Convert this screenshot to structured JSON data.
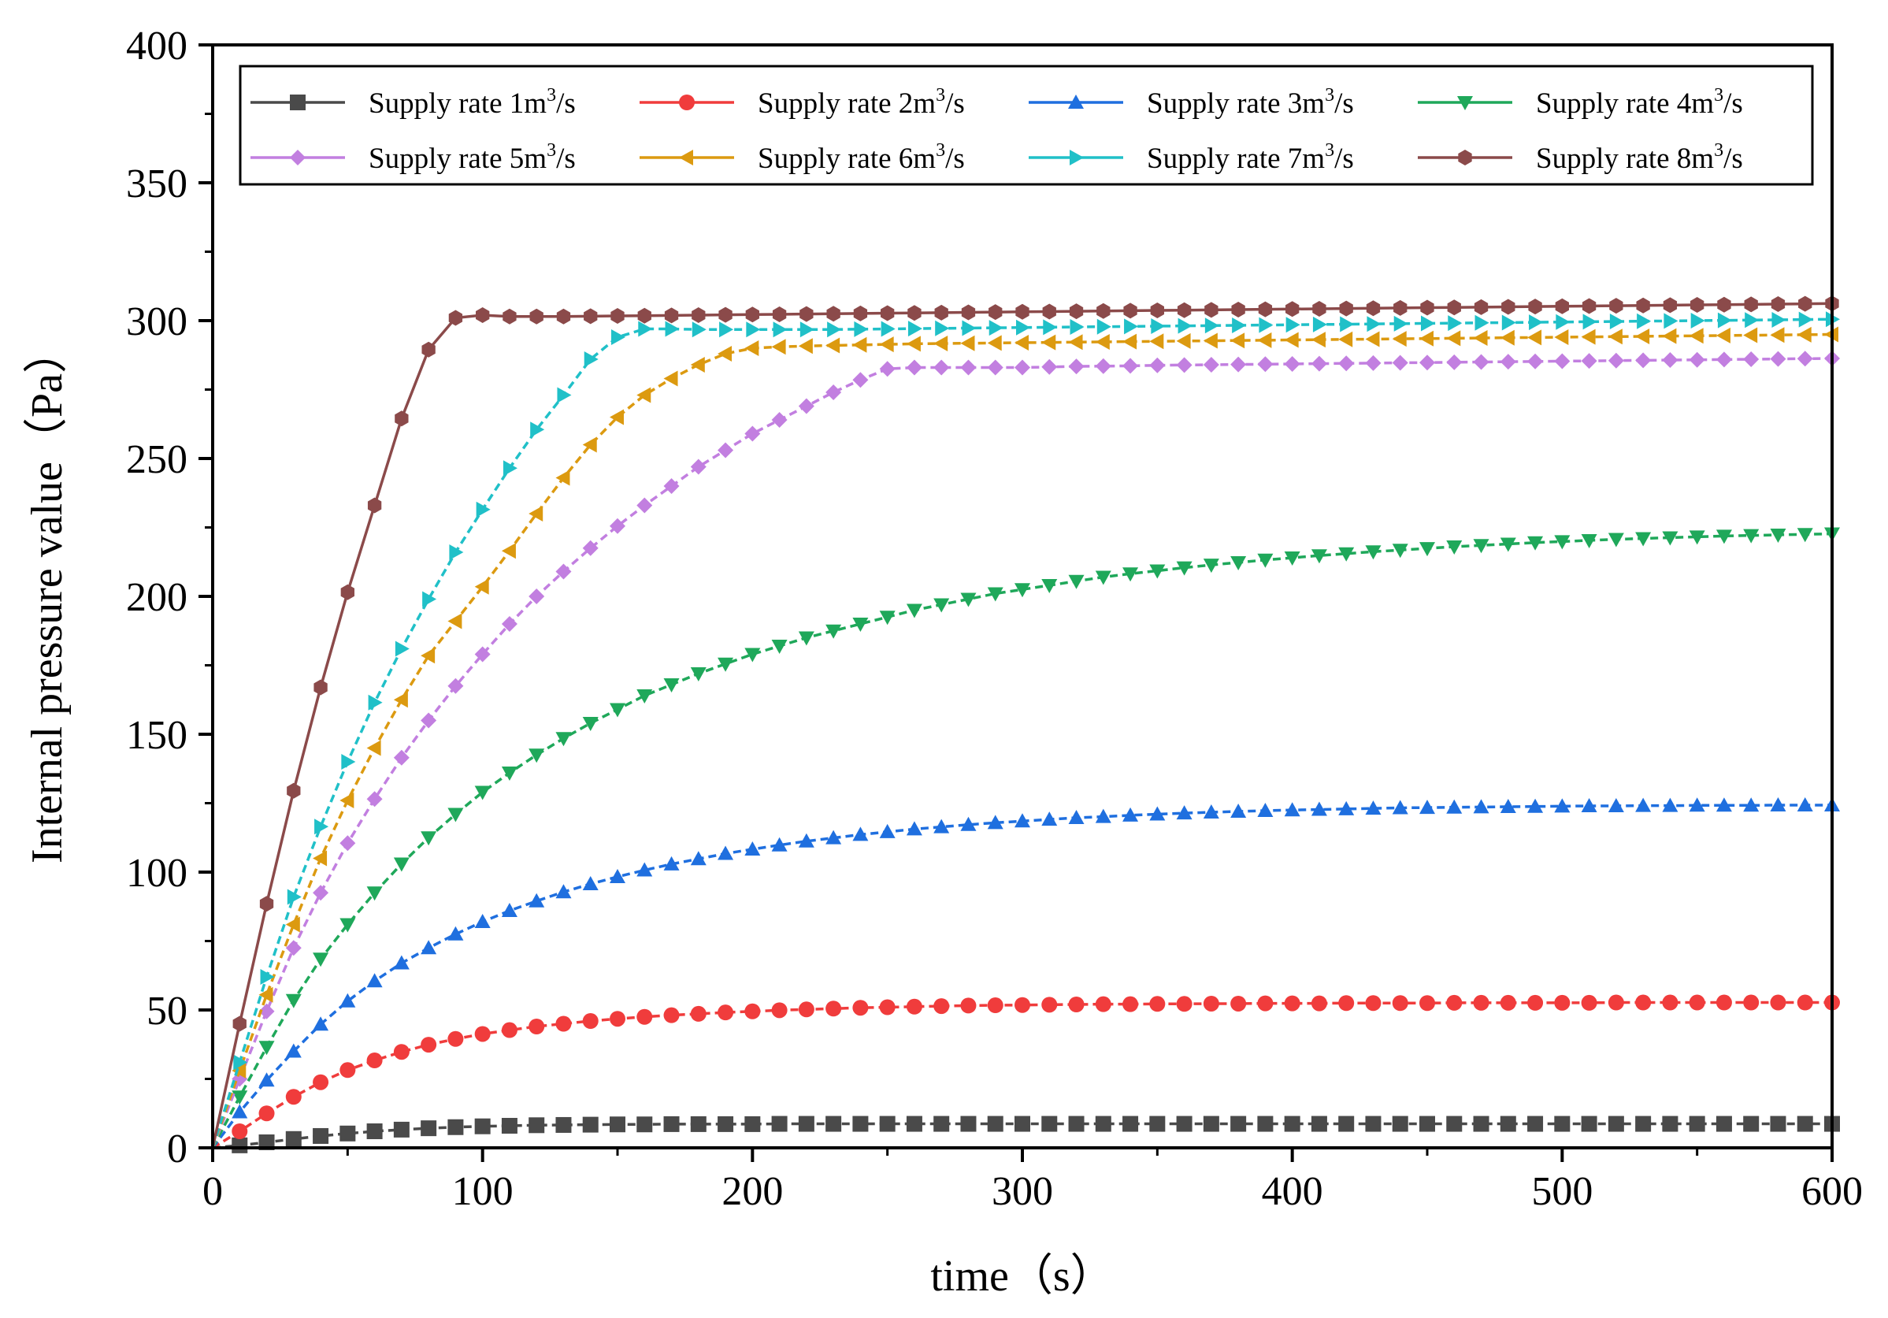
{
  "chart_data": {
    "type": "line",
    "title": "",
    "xlabel": "time（s）",
    "ylabel": "Internal pressure value（Pa）",
    "xlim": [
      0,
      600
    ],
    "ylim": [
      0,
      400
    ],
    "xticks": [
      0,
      100,
      200,
      300,
      400,
      500,
      600
    ],
    "yticks": [
      0,
      50,
      100,
      150,
      200,
      250,
      300,
      350,
      400
    ],
    "grid": false,
    "legend_position": "top",
    "legend_columns": 4,
    "x": [
      0,
      10,
      20,
      30,
      40,
      50,
      60,
      70,
      80,
      90,
      100,
      110,
      120,
      130,
      140,
      150,
      160,
      170,
      180,
      190,
      200,
      210,
      220,
      230,
      240,
      250,
      260,
      270,
      280,
      290,
      300,
      310,
      320,
      330,
      340,
      350,
      360,
      370,
      380,
      390,
      400,
      410,
      420,
      430,
      440,
      450,
      460,
      470,
      480,
      490,
      500,
      510,
      520,
      530,
      540,
      550,
      560,
      570,
      580,
      590,
      600
    ],
    "series": [
      {
        "name": "Supply rate 1m³/s",
        "name_base": "Supply rate 1m",
        "name_sup": "3",
        "name_tail": "/s",
        "color": "#4a4a4a",
        "marker": "square",
        "values": [
          0,
          0.9,
          2,
          3.2,
          4.3,
          5.2,
          6,
          6.6,
          7.1,
          7.5,
          7.8,
          8,
          8.2,
          8.3,
          8.4,
          8.5,
          8.5,
          8.6,
          8.6,
          8.6,
          8.6,
          8.7,
          8.7,
          8.7,
          8.7,
          8.7,
          8.7,
          8.7,
          8.7,
          8.7,
          8.7,
          8.7,
          8.7,
          8.7,
          8.7,
          8.7,
          8.7,
          8.7,
          8.7,
          8.7,
          8.7,
          8.7,
          8.7,
          8.7,
          8.7,
          8.7,
          8.7,
          8.7,
          8.7,
          8.7,
          8.7,
          8.7,
          8.7,
          8.7,
          8.7,
          8.7,
          8.7,
          8.7,
          8.7,
          8.7,
          8.7
        ]
      },
      {
        "name": "Supply rate 2m³/s",
        "name_base": "Supply rate 2m",
        "name_sup": "3",
        "name_tail": "/s",
        "color": "#f03c3c",
        "marker": "circle",
        "values": [
          0,
          6,
          12.5,
          18.5,
          23.8,
          28.2,
          31.7,
          34.8,
          37.4,
          39.5,
          41.3,
          42.7,
          44,
          45,
          46,
          46.8,
          47.5,
          48.1,
          48.6,
          49.1,
          49.5,
          49.9,
          50.2,
          50.5,
          50.8,
          51,
          51.2,
          51.4,
          51.6,
          51.7,
          51.8,
          51.9,
          52,
          52.1,
          52.1,
          52.2,
          52.2,
          52.3,
          52.3,
          52.4,
          52.4,
          52.4,
          52.5,
          52.5,
          52.5,
          52.5,
          52.6,
          52.6,
          52.6,
          52.6,
          52.6,
          52.6,
          52.7,
          52.7,
          52.7,
          52.7,
          52.7,
          52.7,
          52.7,
          52.7,
          52.7
        ]
      },
      {
        "name": "Supply rate 3m³/s",
        "name_base": "Supply rate 3m",
        "name_sup": "3",
        "name_tail": "/s",
        "color": "#1f6fdf",
        "marker": "triangle-up",
        "values": [
          0,
          13,
          24.5,
          35,
          44.8,
          53.2,
          60.5,
          67,
          72.5,
          77.5,
          82,
          86,
          89.5,
          92.8,
          95.7,
          98.3,
          100.7,
          102.9,
          104.8,
          106.7,
          108.3,
          109.8,
          111.2,
          112.4,
          113.6,
          114.6,
          115.6,
          116.4,
          117.2,
          117.9,
          118.5,
          119.1,
          119.7,
          120.1,
          120.6,
          121,
          121.4,
          121.7,
          122,
          122.3,
          122.5,
          122.7,
          122.9,
          123.1,
          123.3,
          123.4,
          123.5,
          123.6,
          123.7,
          123.8,
          123.9,
          124,
          124,
          124.1,
          124.1,
          124.2,
          124.2,
          124.2,
          124.3,
          124.3,
          124.3
        ]
      },
      {
        "name": "Supply rate 4m³/s",
        "name_base": "Supply rate 4m",
        "name_sup": "3",
        "name_tail": "/s",
        "color": "#1fa85a",
        "marker": "triangle-down",
        "values": [
          0,
          18.5,
          36.5,
          53.5,
          68.5,
          81,
          92.5,
          103,
          112.5,
          121,
          129,
          136,
          142.5,
          148.5,
          154,
          159,
          164,
          168,
          172,
          175.5,
          179,
          182,
          185,
          187.5,
          190,
          192.5,
          195,
          197,
          199,
          201,
          202.5,
          204,
          205.5,
          207,
          208.2,
          209.3,
          210.4,
          211.4,
          212.3,
          213.2,
          214,
          214.8,
          215.5,
          216.2,
          216.8,
          217.4,
          218,
          218.5,
          219,
          219.5,
          219.9,
          220.3,
          220.7,
          221,
          221.3,
          221.6,
          221.9,
          222.1,
          222.3,
          222.5,
          222.7
        ]
      },
      {
        "name": "Supply rate 5m³/s",
        "name_base": "Supply rate 5m",
        "name_sup": "3",
        "name_tail": "/s",
        "color": "#c27fe0",
        "marker": "diamond",
        "values": [
          0,
          25,
          49.5,
          72.5,
          92.5,
          110.5,
          126.5,
          141.5,
          155,
          167.5,
          179,
          190,
          200,
          209,
          217.5,
          225.5,
          233,
          240,
          247,
          253,
          259,
          264,
          269,
          274,
          278.5,
          282.5,
          283,
          283,
          283,
          283,
          283,
          283.2,
          283.4,
          283.5,
          283.6,
          283.8,
          283.9,
          284,
          284.1,
          284.2,
          284.3,
          284.4,
          284.5,
          284.6,
          284.7,
          284.8,
          284.9,
          285,
          285.1,
          285.2,
          285.3,
          285.4,
          285.5,
          285.6,
          285.7,
          285.8,
          285.9,
          286,
          286.1,
          286.2,
          286.3
        ]
      },
      {
        "name": "Supply rate 6m³/s",
        "name_base": "Supply rate 6m",
        "name_sup": "3",
        "name_tail": "/s",
        "color": "#dc9a10",
        "marker": "triangle-left",
        "values": [
          0,
          28,
          55.5,
          81,
          105,
          126,
          145,
          162.5,
          178.5,
          191,
          203.5,
          216.5,
          230,
          243,
          255,
          265,
          273,
          279,
          284,
          288,
          290,
          290.5,
          290.8,
          291,
          291.2,
          291.4,
          291.6,
          291.7,
          291.8,
          291.9,
          292,
          292.1,
          292.2,
          292.3,
          292.4,
          292.5,
          292.6,
          292.7,
          292.8,
          292.9,
          293,
          293.1,
          293.2,
          293.3,
          293.4,
          293.5,
          293.6,
          293.7,
          293.8,
          293.9,
          294,
          294.1,
          294.2,
          294.3,
          294.4,
          294.5,
          294.6,
          294.7,
          294.8,
          294.9,
          295
        ]
      },
      {
        "name": "Supply rate 7m³/s",
        "name_base": "Supply rate 7m",
        "name_sup": "3",
        "name_tail": "/s",
        "color": "#20c0c8",
        "marker": "triangle-right",
        "values": [
          0,
          31,
          62,
          91,
          116.5,
          140,
          161.5,
          181,
          199,
          216,
          231.5,
          246.5,
          260.5,
          273,
          286,
          294,
          297,
          297,
          296.8,
          296.8,
          296.8,
          296.8,
          296.8,
          296.8,
          296.9,
          297,
          297.1,
          297.2,
          297.3,
          297.4,
          297.5,
          297.6,
          297.7,
          297.8,
          297.9,
          298,
          298.1,
          298.2,
          298.3,
          298.4,
          298.5,
          298.6,
          298.7,
          298.8,
          298.9,
          299,
          299.1,
          299.2,
          299.3,
          299.4,
          299.5,
          299.6,
          299.7,
          299.8,
          299.9,
          300,
          300.1,
          300.2,
          300.3,
          300.4,
          300.5
        ]
      },
      {
        "name": "Supply rate 8m³/s",
        "name_base": "Supply rate 8m",
        "name_sup": "3",
        "name_tail": "/s",
        "color": "#8b4a4a",
        "marker": "hexagon",
        "values": [
          0,
          45,
          88.5,
          129.5,
          167,
          201.5,
          233,
          264.5,
          289.5,
          301,
          302,
          301.5,
          301.5,
          301.5,
          301.6,
          301.7,
          301.8,
          301.9,
          302,
          302.1,
          302.2,
          302.3,
          302.4,
          302.5,
          302.6,
          302.7,
          302.8,
          302.9,
          303,
          303.1,
          303.2,
          303.3,
          303.4,
          303.5,
          303.6,
          303.7,
          303.8,
          303.9,
          304,
          304.1,
          304.2,
          304.3,
          304.4,
          304.5,
          304.6,
          304.7,
          304.8,
          304.9,
          305,
          305.1,
          305.2,
          305.3,
          305.4,
          305.5,
          305.6,
          305.7,
          305.8,
          305.9,
          306,
          306.1,
          306.2
        ]
      }
    ]
  }
}
